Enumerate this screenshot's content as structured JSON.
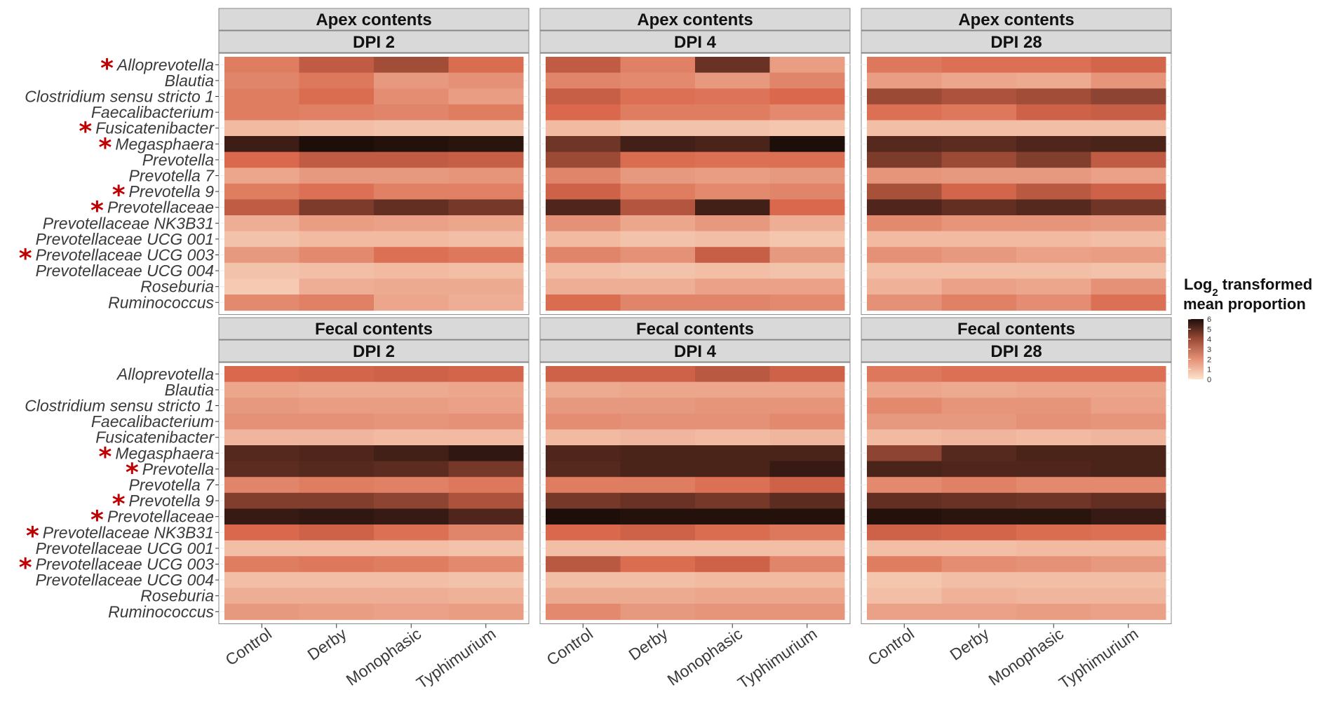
{
  "chart_data": {
    "type": "heatmap",
    "legend": {
      "title_prefix": "Log",
      "title_sub": "2",
      "title_suffix": " transformed",
      "title_line2": "mean proportion",
      "range": [
        0,
        6
      ],
      "ticks": [
        "6",
        "5",
        "4",
        "3",
        "2",
        "1",
        "0"
      ],
      "color_low": "#fde3cc",
      "color_mid": "#d9684c",
      "color_high": "#1e0e0a"
    },
    "columns": [
      "Control",
      "Derby",
      "Monophasic",
      "Typhimurium"
    ],
    "star_symbol": "*",
    "colors": {
      "star": "#c00000",
      "strip_bg": "#d9d9d9",
      "grid": "#ececec"
    },
    "rows": [
      {
        "genera": [
          "Alloprevotella",
          "Blautia",
          "Clostridium sensu stricto 1",
          "Faecalibacterium",
          "Fusicatenibacter",
          "Megasphaera",
          "Prevotella",
          "Prevotella 7",
          "Prevotella 9",
          "Prevotellaceae",
          "Prevotellaceae NK3B31",
          "Prevotellaceae UCG 001",
          "Prevotellaceae UCG 003",
          "Prevotellaceae UCG 004",
          "Roseburia",
          "Ruminococcus"
        ],
        "starred": [
          true,
          false,
          false,
          false,
          true,
          true,
          false,
          false,
          true,
          true,
          false,
          false,
          true,
          false,
          false,
          false
        ],
        "panels": [
          {
            "site": "Apex contents",
            "dpi": "DPI 2",
            "values": [
              [
                2.5,
                3.4,
                3.9,
                2.9
              ],
              [
                2.3,
                2.6,
                1.8,
                2.0
              ],
              [
                2.5,
                2.9,
                2.1,
                1.7
              ],
              [
                2.5,
                2.4,
                2.3,
                2.5
              ],
              [
                1.0,
                0.9,
                0.8,
                0.8
              ],
              [
                5.5,
                6.0,
                5.9,
                5.8
              ],
              [
                3.0,
                3.4,
                3.4,
                3.3
              ],
              [
                1.5,
                1.8,
                1.8,
                1.9
              ],
              [
                2.5,
                2.8,
                2.4,
                2.4
              ],
              [
                3.4,
                4.5,
                4.9,
                4.6
              ],
              [
                1.3,
                1.7,
                1.6,
                1.5
              ],
              [
                0.8,
                1.0,
                1.0,
                0.9
              ],
              [
                1.8,
                2.2,
                2.8,
                2.6
              ],
              [
                0.8,
                0.9,
                1.0,
                0.9
              ],
              [
                0.6,
                1.3,
                1.4,
                1.4
              ],
              [
                2.2,
                2.4,
                1.5,
                1.3
              ]
            ]
          },
          {
            "site": "Apex contents",
            "dpi": "DPI 4",
            "values": [
              [
                3.4,
                2.4,
                4.8,
                1.7
              ],
              [
                2.3,
                2.2,
                1.8,
                2.3
              ],
              [
                3.3,
                2.8,
                2.7,
                3.0
              ],
              [
                3.0,
                2.5,
                2.5,
                2.2
              ],
              [
                1.0,
                0.8,
                0.8,
                0.7
              ],
              [
                4.7,
                5.4,
                5.3,
                6.0
              ],
              [
                4.0,
                2.9,
                2.8,
                2.8
              ],
              [
                2.3,
                1.8,
                1.7,
                1.8
              ],
              [
                3.2,
                2.5,
                2.2,
                2.3
              ],
              [
                5.2,
                3.6,
                5.4,
                3.0
              ],
              [
                2.0,
                1.5,
                1.8,
                1.3
              ],
              [
                1.0,
                0.8,
                0.9,
                0.7
              ],
              [
                2.3,
                2.0,
                3.3,
                1.8
              ],
              [
                0.9,
                0.8,
                0.9,
                0.8
              ],
              [
                1.3,
                1.3,
                1.6,
                1.6
              ],
              [
                2.9,
                2.3,
                2.3,
                2.2
              ]
            ]
          },
          {
            "site": "Apex contents",
            "dpi": "DPI 28",
            "values": [
              [
                2.6,
                2.8,
                2.8,
                3.1
              ],
              [
                1.7,
                1.5,
                1.4,
                1.9
              ],
              [
                4.0,
                3.7,
                3.9,
                4.2
              ],
              [
                2.8,
                2.6,
                3.2,
                3.3
              ],
              [
                0.9,
                0.9,
                0.9,
                0.9
              ],
              [
                5.1,
                5.0,
                5.2,
                5.3
              ],
              [
                4.5,
                4.0,
                4.4,
                3.4
              ],
              [
                1.9,
                1.8,
                1.8,
                1.6
              ],
              [
                3.8,
                3.1,
                3.5,
                3.2
              ],
              [
                5.2,
                4.9,
                5.1,
                4.7
              ],
              [
                2.2,
                1.9,
                1.9,
                1.8
              ],
              [
                1.0,
                1.0,
                1.0,
                0.9
              ],
              [
                2.0,
                1.8,
                1.6,
                1.7
              ],
              [
                0.9,
                0.9,
                0.9,
                0.8
              ],
              [
                1.2,
                1.6,
                1.5,
                2.0
              ],
              [
                2.0,
                2.4,
                2.1,
                2.8
              ]
            ]
          }
        ]
      },
      {
        "genera": [
          "Alloprevotella",
          "Blautia",
          "Clostridium sensu stricto 1",
          "Faecalibacterium",
          "Fusicatenibacter",
          "Megasphaera",
          "Prevotella",
          "Prevotella 7",
          "Prevotella 9",
          "Prevotellaceae",
          "Prevotellaceae NK3B31",
          "Prevotellaceae UCG 001",
          "Prevotellaceae UCG 003",
          "Prevotellaceae UCG 004",
          "Roseburia",
          "Ruminococcus"
        ],
        "starred": [
          false,
          false,
          false,
          false,
          false,
          true,
          true,
          false,
          true,
          true,
          true,
          false,
          true,
          false,
          false,
          false
        ],
        "panels": [
          {
            "site": "Fecal contents",
            "dpi": "DPI 2",
            "values": [
              [
                3.0,
                3.1,
                3.2,
                3.1
              ],
              [
                1.5,
                1.4,
                1.4,
                1.5
              ],
              [
                1.8,
                1.7,
                1.7,
                1.6
              ],
              [
                2.0,
                2.0,
                1.9,
                2.0
              ],
              [
                1.1,
                1.1,
                1.0,
                1.0
              ],
              [
                5.1,
                5.2,
                5.4,
                5.7
              ],
              [
                5.0,
                5.1,
                5.0,
                4.6
              ],
              [
                2.3,
                2.5,
                2.4,
                2.6
              ],
              [
                4.4,
                4.4,
                4.2,
                3.7
              ],
              [
                5.6,
                5.7,
                5.6,
                5.2
              ],
              [
                3.0,
                3.2,
                2.8,
                2.3
              ],
              [
                0.9,
                0.9,
                0.9,
                0.8
              ],
              [
                2.5,
                2.6,
                2.5,
                2.2
              ],
              [
                0.9,
                0.9,
                0.9,
                0.8
              ],
              [
                1.3,
                1.3,
                1.3,
                1.2
              ],
              [
                1.8,
                1.7,
                1.6,
                1.7
              ]
            ]
          },
          {
            "site": "Fecal contents",
            "dpi": "DPI 4",
            "values": [
              [
                3.2,
                3.2,
                3.5,
                3.2
              ],
              [
                1.4,
                1.5,
                1.5,
                1.5
              ],
              [
                1.8,
                1.8,
                1.9,
                1.9
              ],
              [
                2.1,
                2.0,
                2.0,
                2.2
              ],
              [
                1.0,
                1.1,
                1.0,
                1.1
              ],
              [
                5.2,
                5.3,
                5.3,
                5.3
              ],
              [
                5.1,
                5.3,
                5.3,
                5.6
              ],
              [
                2.5,
                2.5,
                2.8,
                3.2
              ],
              [
                4.6,
                4.8,
                4.6,
                5.0
              ],
              [
                6.0,
                5.9,
                5.9,
                5.9
              ],
              [
                3.0,
                3.2,
                2.9,
                2.6
              ],
              [
                0.9,
                0.9,
                0.9,
                0.9
              ],
              [
                3.5,
                2.9,
                3.2,
                2.3
              ],
              [
                0.9,
                0.9,
                1.0,
                1.0
              ],
              [
                1.4,
                1.4,
                1.5,
                1.5
              ],
              [
                2.2,
                1.8,
                1.9,
                1.9
              ]
            ]
          },
          {
            "site": "Fecal contents",
            "dpi": "DPI 28",
            "values": [
              [
                2.6,
                2.8,
                2.8,
                2.8
              ],
              [
                1.5,
                1.4,
                1.5,
                1.5
              ],
              [
                2.2,
                1.9,
                1.9,
                1.6
              ],
              [
                1.8,
                1.8,
                2.0,
                1.9
              ],
              [
                1.0,
                1.1,
                1.0,
                1.1
              ],
              [
                4.2,
                5.1,
                5.3,
                5.3
              ],
              [
                5.3,
                5.2,
                5.2,
                5.3
              ],
              [
                2.2,
                2.4,
                2.2,
                2.2
              ],
              [
                4.9,
                4.8,
                4.7,
                4.9
              ],
              [
                5.9,
                5.8,
                5.8,
                5.6
              ],
              [
                3.2,
                3.1,
                2.9,
                2.8
              ],
              [
                0.9,
                0.9,
                1.0,
                1.0
              ],
              [
                2.5,
                2.1,
                2.0,
                1.8
              ],
              [
                0.7,
                0.9,
                0.9,
                0.9
              ],
              [
                0.9,
                1.2,
                1.1,
                1.1
              ],
              [
                1.6,
                1.6,
                1.7,
                1.6
              ]
            ]
          }
        ]
      }
    ]
  }
}
